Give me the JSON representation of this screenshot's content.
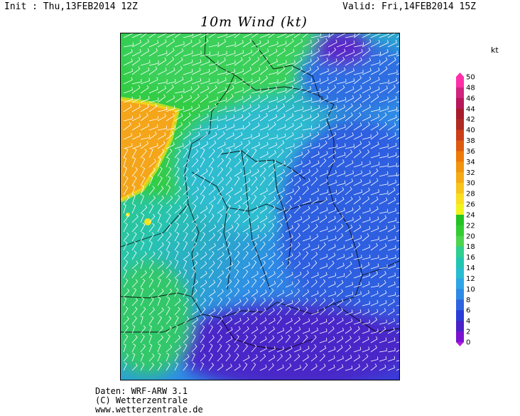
{
  "header": {
    "init": "Init : Thu,13FEB2014 12Z",
    "valid": "Valid: Fri,14FEB2014 15Z",
    "title": "10m Wind (kt)"
  },
  "legend": {
    "unit": "kt",
    "levels": [
      "50",
      "48",
      "46",
      "44",
      "42",
      "40",
      "38",
      "36",
      "34",
      "32",
      "30",
      "28",
      "26",
      "24",
      "22",
      "20",
      "18",
      "16",
      "14",
      "12",
      "10",
      "8",
      "6",
      "4",
      "2",
      "0"
    ],
    "colors": [
      "#ff2fa8",
      "#d1247f",
      "#b8175a",
      "#a81b2b",
      "#b02a22",
      "#cc3e18",
      "#dd5a10",
      "#ee7a08",
      "#f19410",
      "#f5ab16",
      "#f8c51c",
      "#f9de22",
      "#f2f21f",
      "#22c322",
      "#33cc33",
      "#4fd44f",
      "#2fcf90",
      "#22c6b0",
      "#28bcd0",
      "#2ea6e6",
      "#2f8ae6",
      "#2f64e0",
      "#2c3cd8",
      "#4a22c8",
      "#7a12d0",
      "#b01cdc"
    ]
  },
  "footer": {
    "line1": "Daten: WRF-ARW 3.1",
    "line2": "(C) Wetterzentrale",
    "line3": "www.wetterzentrale.de"
  },
  "map": {
    "description_colors": {
      "green": "#2ecc4a",
      "cyan": "#2ec6d6",
      "blue": "#2f66e2",
      "violet": "#5a22c8",
      "orange": "#f5a51a"
    }
  }
}
